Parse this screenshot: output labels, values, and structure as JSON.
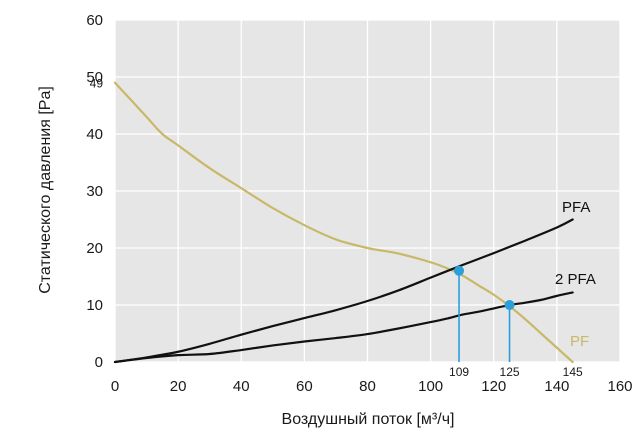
{
  "chart_data": {
    "type": "line",
    "title": "",
    "xlabel": "Воздушный поток [м³/ч]",
    "ylabel": "Статического давления [Pa]",
    "xlim": [
      0,
      160
    ],
    "ylim": [
      0,
      60
    ],
    "x_ticks": [
      0,
      20,
      40,
      60,
      80,
      100,
      120,
      140,
      160
    ],
    "y_ticks": [
      0,
      10,
      20,
      30,
      40,
      50,
      60
    ],
    "grid": true,
    "plot_background": "#e6e6e6",
    "grid_color": "#ffffff",
    "series": [
      {
        "name": "PF",
        "color": "#c8b868",
        "x": [
          0,
          5,
          10,
          15,
          20,
          30,
          40,
          50,
          60,
          70,
          80,
          90,
          100,
          105,
          110,
          115,
          120,
          125,
          130,
          135,
          140,
          145
        ],
        "y": [
          49,
          46,
          43,
          40,
          38,
          34,
          30.5,
          27,
          24,
          21.5,
          20,
          19,
          17.5,
          16.5,
          15.2,
          13.5,
          11.8,
          9.8,
          7.5,
          5,
          2.5,
          0
        ]
      },
      {
        "name": "PFA",
        "color": "#111111",
        "x": [
          0,
          10,
          20,
          30,
          40,
          50,
          60,
          70,
          80,
          90,
          100,
          110,
          120,
          130,
          140,
          145
        ],
        "y": [
          0,
          0.8,
          1.8,
          3.2,
          4.8,
          6.3,
          7.7,
          9.1,
          10.7,
          12.6,
          14.8,
          17.0,
          19.1,
          21.3,
          23.6,
          25.0
        ]
      },
      {
        "name": "2 PFA",
        "color": "#111111",
        "x": [
          0,
          10,
          20,
          30,
          40,
          50,
          60,
          70,
          80,
          90,
          100,
          105,
          110,
          115,
          120,
          125,
          130,
          135,
          140,
          145
        ],
        "y": [
          0,
          0.7,
          1.2,
          1.4,
          2.1,
          2.9,
          3.6,
          4.2,
          4.9,
          5.9,
          7.0,
          7.6,
          8.3,
          8.8,
          9.4,
          10.0,
          10.4,
          10.9,
          11.6,
          12.2
        ]
      }
    ],
    "operating_points": [
      {
        "x": 109,
        "y": 16,
        "label": "109",
        "color": "#2b9fd9"
      },
      {
        "x": 125,
        "y": 10,
        "label": "125",
        "color": "#2b9fd9"
      }
    ],
    "annotations": [
      {
        "text": "49",
        "x": 0,
        "y": 49
      },
      {
        "text": "145",
        "x": 145,
        "y": 0
      }
    ]
  }
}
